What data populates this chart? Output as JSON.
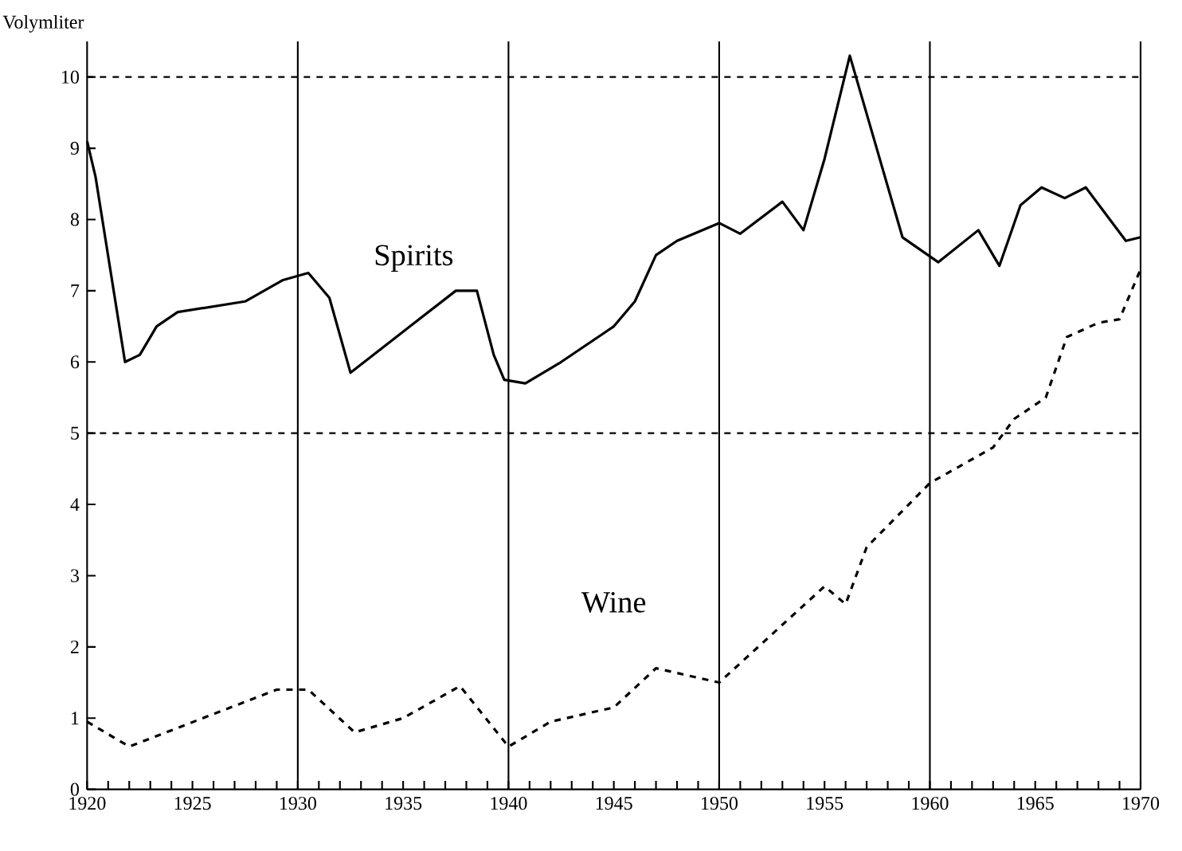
{
  "chart_data": {
    "type": "line",
    "ylabel": "Volymliter",
    "xlim": [
      1920,
      1970
    ],
    "ylim": [
      0,
      10.5
    ],
    "xticks": [
      1920,
      {
        "value": 1921,
        "label": null
      },
      {
        "value": 1922,
        "label": null
      },
      {
        "value": 1923,
        "label": null
      },
      {
        "value": 1924,
        "label": null
      },
      1925,
      {
        "value": 1926,
        "label": null
      },
      {
        "value": 1927,
        "label": null
      },
      {
        "value": 1928,
        "label": null
      },
      {
        "value": 1929,
        "label": null
      },
      1930,
      {
        "value": 1931,
        "label": null
      },
      {
        "value": 1932,
        "label": null
      },
      {
        "value": 1933,
        "label": null
      },
      {
        "value": 1934,
        "label": null
      },
      1935,
      {
        "value": 1936,
        "label": null
      },
      {
        "value": 1937,
        "label": null
      },
      {
        "value": 1938,
        "label": null
      },
      {
        "value": 1939,
        "label": null
      },
      1940,
      {
        "value": 1941,
        "label": null
      },
      {
        "value": 1942,
        "label": null
      },
      {
        "value": 1943,
        "label": null
      },
      {
        "value": 1944,
        "label": null
      },
      1945,
      {
        "value": 1946,
        "label": null
      },
      {
        "value": 1947,
        "label": null
      },
      {
        "value": 1948,
        "label": null
      },
      {
        "value": 1949,
        "label": null
      },
      1950,
      {
        "value": 1951,
        "label": null
      },
      {
        "value": 1952,
        "label": null
      },
      {
        "value": 1953,
        "label": null
      },
      {
        "value": 1954,
        "label": null
      },
      1955,
      {
        "value": 1956,
        "label": null
      },
      {
        "value": 1957,
        "label": null
      },
      {
        "value": 1958,
        "label": null
      },
      {
        "value": 1959,
        "label": null
      },
      1960,
      {
        "value": 1961,
        "label": null
      },
      {
        "value": 1962,
        "label": null
      },
      {
        "value": 1963,
        "label": null
      },
      {
        "value": 1964,
        "label": null
      },
      1965,
      {
        "value": 1966,
        "label": null
      },
      {
        "value": 1967,
        "label": null
      },
      {
        "value": 1968,
        "label": null
      },
      {
        "value": 1969,
        "label": null
      },
      1970
    ],
    "yticks": [
      0,
      1,
      2,
      3,
      4,
      5,
      6,
      7,
      8,
      9,
      10
    ],
    "series": [
      {
        "color": "#000000",
        "line_style": "solid",
        "x": [
          1920,
          1920.4,
          1921.8,
          1922.5,
          1923.3,
          1924.3,
          1927.5,
          1929.3,
          1930.5,
          1931.5,
          1932.5,
          1937.5,
          1938.5,
          1939.3,
          1939.8,
          1940.8,
          1942.5,
          1945,
          1946,
          1947,
          1948,
          1950,
          1951,
          1953,
          1954,
          1955,
          1956.2,
          1958.7,
          1960.4,
          1962.3,
          1963.3,
          1964.3,
          1965.3,
          1966.4,
          1967.4,
          1969.3,
          1970
        ],
        "values": [
          9.1,
          8.6,
          6.0,
          6.1,
          6.5,
          6.7,
          6.85,
          7.15,
          7.25,
          6.9,
          5.85,
          7.0,
          7.0,
          6.1,
          5.75,
          5.7,
          6.0,
          6.5,
          6.85,
          7.5,
          7.7,
          7.95,
          7.8,
          8.25,
          7.85,
          8.85,
          10.3,
          7.75,
          7.4,
          7.85,
          7.35,
          8.2,
          8.45,
          8.3,
          8.45,
          7.7,
          7.75
        ]
      },
      {
        "color": "#000000",
        "line_style": "dashed",
        "x": [
          1920,
          1922,
          1929,
          1930.5,
          1932.7,
          1935,
          1937.7,
          1940,
          1942,
          1945,
          1947,
          1950,
          1955,
          1956,
          1957,
          1960,
          1963,
          1964,
          1965.5,
          1966.5,
          1968,
          1969,
          1970
        ],
        "values": [
          0.95,
          0.6,
          1.4,
          1.4,
          0.8,
          1.0,
          1.45,
          0.6,
          0.95,
          1.15,
          1.7,
          1.5,
          2.85,
          2.6,
          3.4,
          4.3,
          4.8,
          5.2,
          5.5,
          6.35,
          6.55,
          6.6,
          7.3
        ]
      }
    ],
    "annotations": [
      "Spirits",
      "Wine"
    ],
    "ref_lines": [
      {
        "axis": "y",
        "value": 5,
        "line_style": "dashed"
      },
      {
        "axis": "y",
        "value": 10,
        "line_style": "dashed"
      },
      {
        "axis": "x",
        "value": 1930,
        "line_style": "solid"
      },
      {
        "axis": "x",
        "value": 1940,
        "line_style": "solid"
      },
      {
        "axis": "x",
        "value": 1950,
        "line_style": "solid"
      },
      {
        "axis": "x",
        "value": 1960,
        "line_style": "solid"
      }
    ],
    "grid": false,
    "marker": "none"
  }
}
